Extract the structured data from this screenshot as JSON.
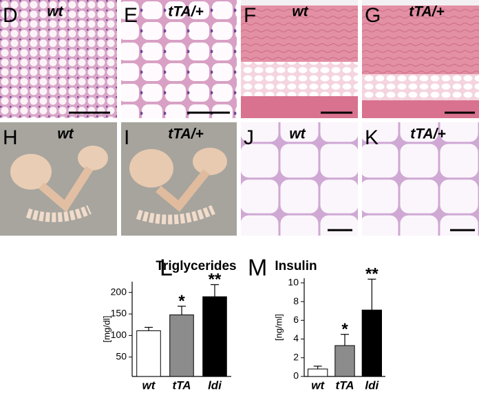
{
  "panels": [
    {
      "letter": "D",
      "label": "wt"
    },
    {
      "letter": "E",
      "label": "tTA/+"
    },
    {
      "letter": "F",
      "label": "wt"
    },
    {
      "letter": "G",
      "label": "tTA/+"
    },
    {
      "letter": "H",
      "label": "wt"
    },
    {
      "letter": "I",
      "label": "tTA/+"
    },
    {
      "letter": "J",
      "label": "wt"
    },
    {
      "letter": "K",
      "label": "tTA/+"
    }
  ],
  "chart_data": [
    {
      "type": "bar",
      "letter": "L",
      "title": "Triglycerides",
      "y_label": "[mg/dl]",
      "categories": [
        "wt",
        "tTA",
        "ldi"
      ],
      "values": [
        111,
        148,
        190
      ],
      "errors": [
        8,
        20,
        28
      ],
      "marks": [
        null,
        "*",
        "**"
      ],
      "colors": [
        "#ffffff",
        "#8c8c8c",
        "#000000"
      ],
      "ylim": [
        5,
        225
      ],
      "yticks": [
        50,
        100,
        150,
        200
      ]
    },
    {
      "type": "bar",
      "letter": "M",
      "title": "Insulin",
      "y_label": "[ng/ml]",
      "categories": [
        "wt",
        "tTA",
        "ldi"
      ],
      "values": [
        0.8,
        3.3,
        7.1
      ],
      "errors": [
        0.3,
        1.2,
        3.3
      ],
      "marks": [
        null,
        "*",
        "**"
      ],
      "colors": [
        "#ffffff",
        "#8c8c8c",
        "#000000"
      ],
      "ylim": [
        0,
        10.5
      ],
      "yticks": [
        0,
        2,
        4,
        6,
        8,
        10
      ]
    }
  ]
}
